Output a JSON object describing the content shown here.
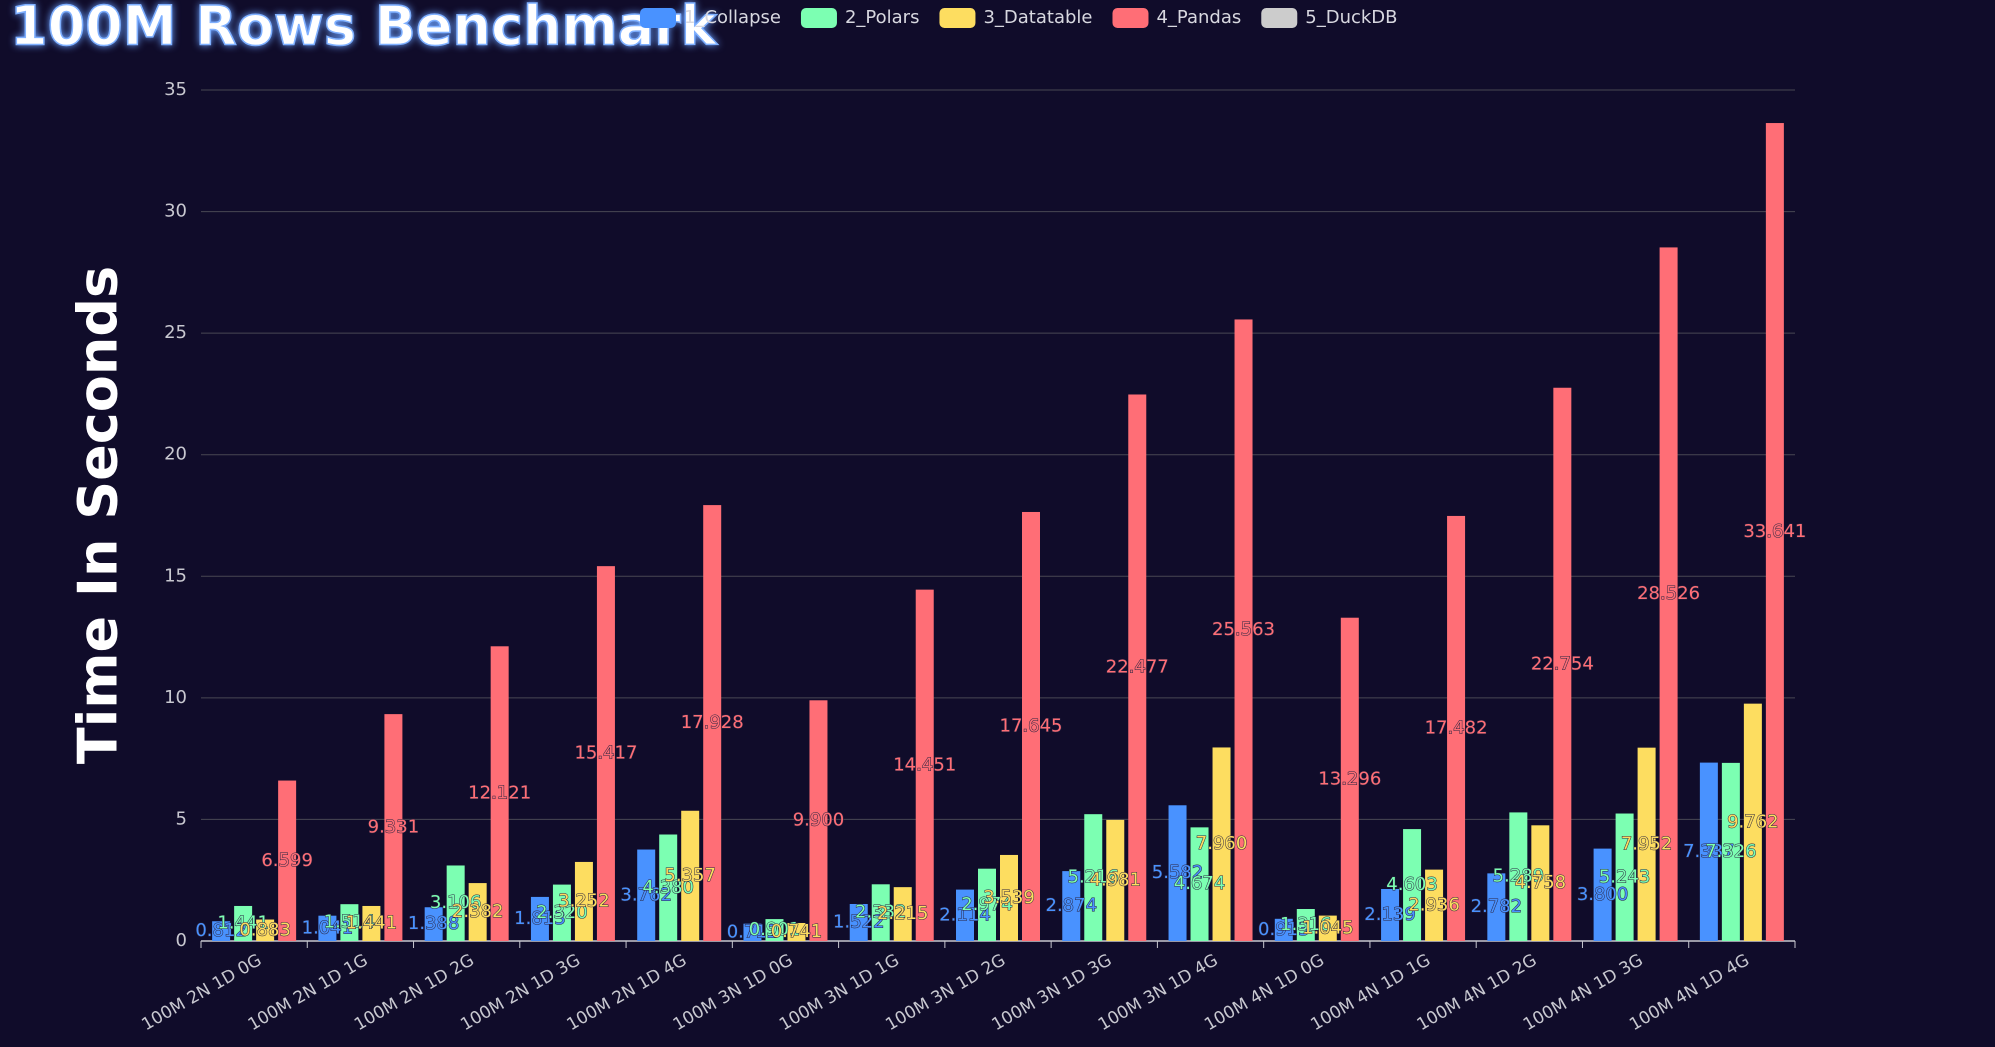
{
  "chart_data": {
    "type": "bar",
    "title": "100M Rows Benchmark",
    "y_label": "Time In Seconds",
    "categories": [
      "100M 2N 1D 0G",
      "100M 2N 1D 1G",
      "100M 2N 1D 2G",
      "100M 2N 1D 3G",
      "100M 2N 1D 4G",
      "100M 3N 1D 0G",
      "100M 3N 1D 1G",
      "100M 3N 1D 2G",
      "100M 3N 1D 3G",
      "100M 3N 1D 4G",
      "100M 4N 1D 0G",
      "100M 4N 1D 1G",
      "100M 4N 1D 2G",
      "100M 4N 1D 3G",
      "100M 4N 1D 4G"
    ],
    "series": [
      {
        "name": "1_Collapse",
        "color": "#4992ff",
        "values": [
          0.812,
          1.041,
          1.388,
          1.813,
          3.762,
          0.712,
          1.522,
          2.114,
          2.874,
          5.582,
          0.913,
          2.139,
          2.782,
          3.8,
          7.337
        ],
        "value_labels": [
          "0.812",
          "1.041",
          "1.388",
          "1.813",
          "3.762",
          "0.712",
          "1.522",
          "2.114",
          "2.874",
          "5.582",
          "0.913",
          "2.139",
          "2.782",
          "3.800",
          "7.337"
        ]
      },
      {
        "name": "2_Polars",
        "color": "#7cffb2",
        "values": [
          1.441,
          1.514,
          3.106,
          2.32,
          4.38,
          0.901,
          2.332,
          2.974,
          5.216,
          4.674,
          1.316,
          4.603,
          5.289,
          5.243,
          7.326
        ],
        "value_labels": [
          "1.441",
          "1.514",
          "3.106",
          "2.320",
          "4.380",
          "0.901",
          "2.332",
          "2.974",
          "5.216",
          "4.674",
          "1.316",
          "4.603",
          "5.289",
          "5.243",
          "7.326"
        ]
      },
      {
        "name": "3_Datatable",
        "color": "#fddd60",
        "values": [
          0.883,
          1.441,
          2.382,
          3.252,
          5.357,
          0.741,
          2.215,
          3.539,
          4.981,
          7.96,
          1.045,
          2.936,
          4.758,
          7.952,
          9.762
        ],
        "value_labels": [
          "0.883",
          "1.441",
          "2.382",
          "3.252",
          "5.357",
          "0.741",
          "2.215",
          "3.539",
          "4.981",
          "7.960",
          "1.045",
          "2.936",
          "4.758",
          "7.952",
          "9.762"
        ]
      },
      {
        "name": "4_Pandas",
        "color": "#ff6e76",
        "values": [
          6.599,
          9.331,
          12.121,
          15.417,
          17.928,
          9.9,
          14.451,
          17.645,
          22.477,
          25.563,
          13.296,
          17.482,
          22.754,
          28.526,
          33.641
        ],
        "value_labels": [
          "6.599",
          "9.331",
          "12.121",
          "15.417",
          "17.928",
          "9.900",
          "14.451",
          "17.645",
          "22.477",
          "25.563",
          "13.296",
          "17.482",
          "22.754",
          "28.526",
          "33.641"
        ]
      },
      {
        "name": "5_DuckDB",
        "color": "#cccccc",
        "values": [
          null,
          null,
          null,
          null,
          null,
          null,
          null,
          null,
          null,
          null,
          null,
          null,
          null,
          null,
          null
        ]
      }
    ],
    "ylim": [
      0,
      35
    ],
    "yticks": [
      0,
      5,
      10,
      15,
      20,
      25,
      30,
      35
    ],
    "grid": true
  }
}
